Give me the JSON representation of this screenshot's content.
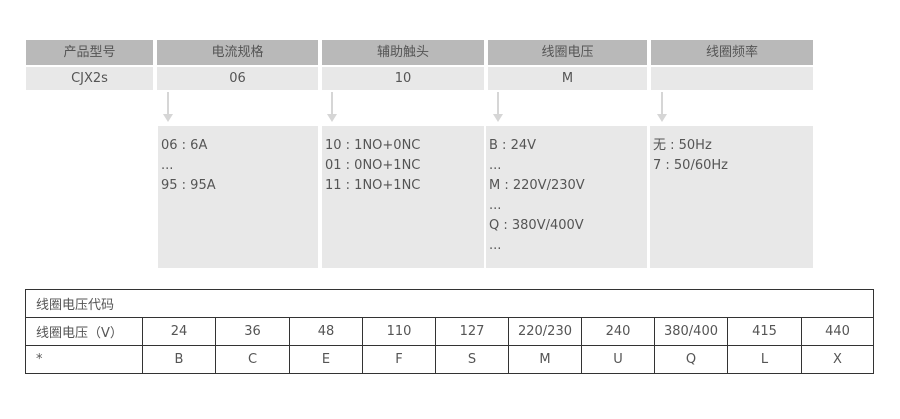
{
  "model_columns": [
    {
      "header": "产品型号",
      "value": "CJX2s"
    },
    {
      "header": "电流规格",
      "value": "06",
      "details": [
        "06 : 6A",
        "...",
        "95 : 95A"
      ]
    },
    {
      "header": "辅助触头",
      "value": "10",
      "details": [
        "10 : 1NO+0NC",
        "01 : 0NO+1NC",
        "11 : 1NO+1NC"
      ]
    },
    {
      "header": "线圈电压",
      "value": "M",
      "details": [
        "B : 24V",
        "...",
        "M : 220V/230V",
        "...",
        "Q : 380V/400V",
        "..."
      ]
    },
    {
      "header": "线圈频率",
      "value": "",
      "details": [
        "无 : 50Hz",
        "7 : 50/60Hz"
      ]
    }
  ],
  "voltage_table": {
    "title": "线圈电压代码",
    "row_labels": [
      "线圈电压（V）",
      "*"
    ],
    "voltages": [
      "24",
      "36",
      "48",
      "110",
      "127",
      "220/230",
      "240",
      "380/400",
      "415",
      "440"
    ],
    "codes": [
      "B",
      "C",
      "E",
      "F",
      "S",
      "M",
      "U",
      "Q",
      "L",
      "X"
    ]
  }
}
